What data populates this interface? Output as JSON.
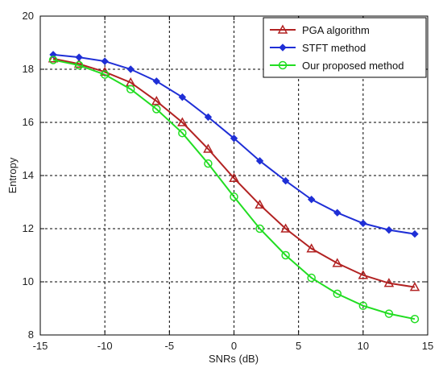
{
  "chart_data": {
    "type": "line",
    "title": "",
    "xlabel": "SNRs (dB)",
    "ylabel": "Entropy",
    "xlim": [
      -15,
      15
    ],
    "ylim": [
      8,
      20
    ],
    "xticks": [
      -15,
      -10,
      -5,
      0,
      5,
      10,
      15
    ],
    "yticks": [
      8,
      10,
      12,
      14,
      16,
      18,
      20
    ],
    "xtick_labels": [
      "-15",
      "-10",
      "-5",
      "0",
      "5",
      "10",
      "15"
    ],
    "ytick_labels": [
      "8",
      "10",
      "12",
      "14",
      "16",
      "18",
      "20"
    ],
    "grid": true,
    "legend_position": "top-right",
    "x": [
      -14,
      -12,
      -10,
      -8,
      -6,
      -4,
      -2,
      0,
      2,
      4,
      6,
      8,
      10,
      12,
      14
    ],
    "series": [
      {
        "name": "PGA algorithm",
        "color": "#b22222",
        "marker": "triangle",
        "values": [
          18.4,
          18.2,
          17.9,
          17.5,
          16.8,
          16.0,
          15.0,
          13.9,
          12.9,
          12.0,
          11.25,
          10.7,
          10.25,
          9.95,
          9.8
        ]
      },
      {
        "name": "STFT method",
        "color": "#1f2fd6",
        "marker": "diamond",
        "values": [
          18.55,
          18.45,
          18.3,
          18.0,
          17.55,
          16.95,
          16.2,
          15.4,
          14.55,
          13.8,
          13.1,
          12.6,
          12.2,
          11.95,
          11.8
        ]
      },
      {
        "name": "Our proposed method",
        "color": "#22dd22",
        "marker": "circle",
        "values": [
          18.35,
          18.15,
          17.8,
          17.25,
          16.5,
          15.6,
          14.45,
          13.2,
          12.0,
          11.0,
          10.15,
          9.55,
          9.1,
          8.8,
          8.6
        ]
      }
    ]
  }
}
